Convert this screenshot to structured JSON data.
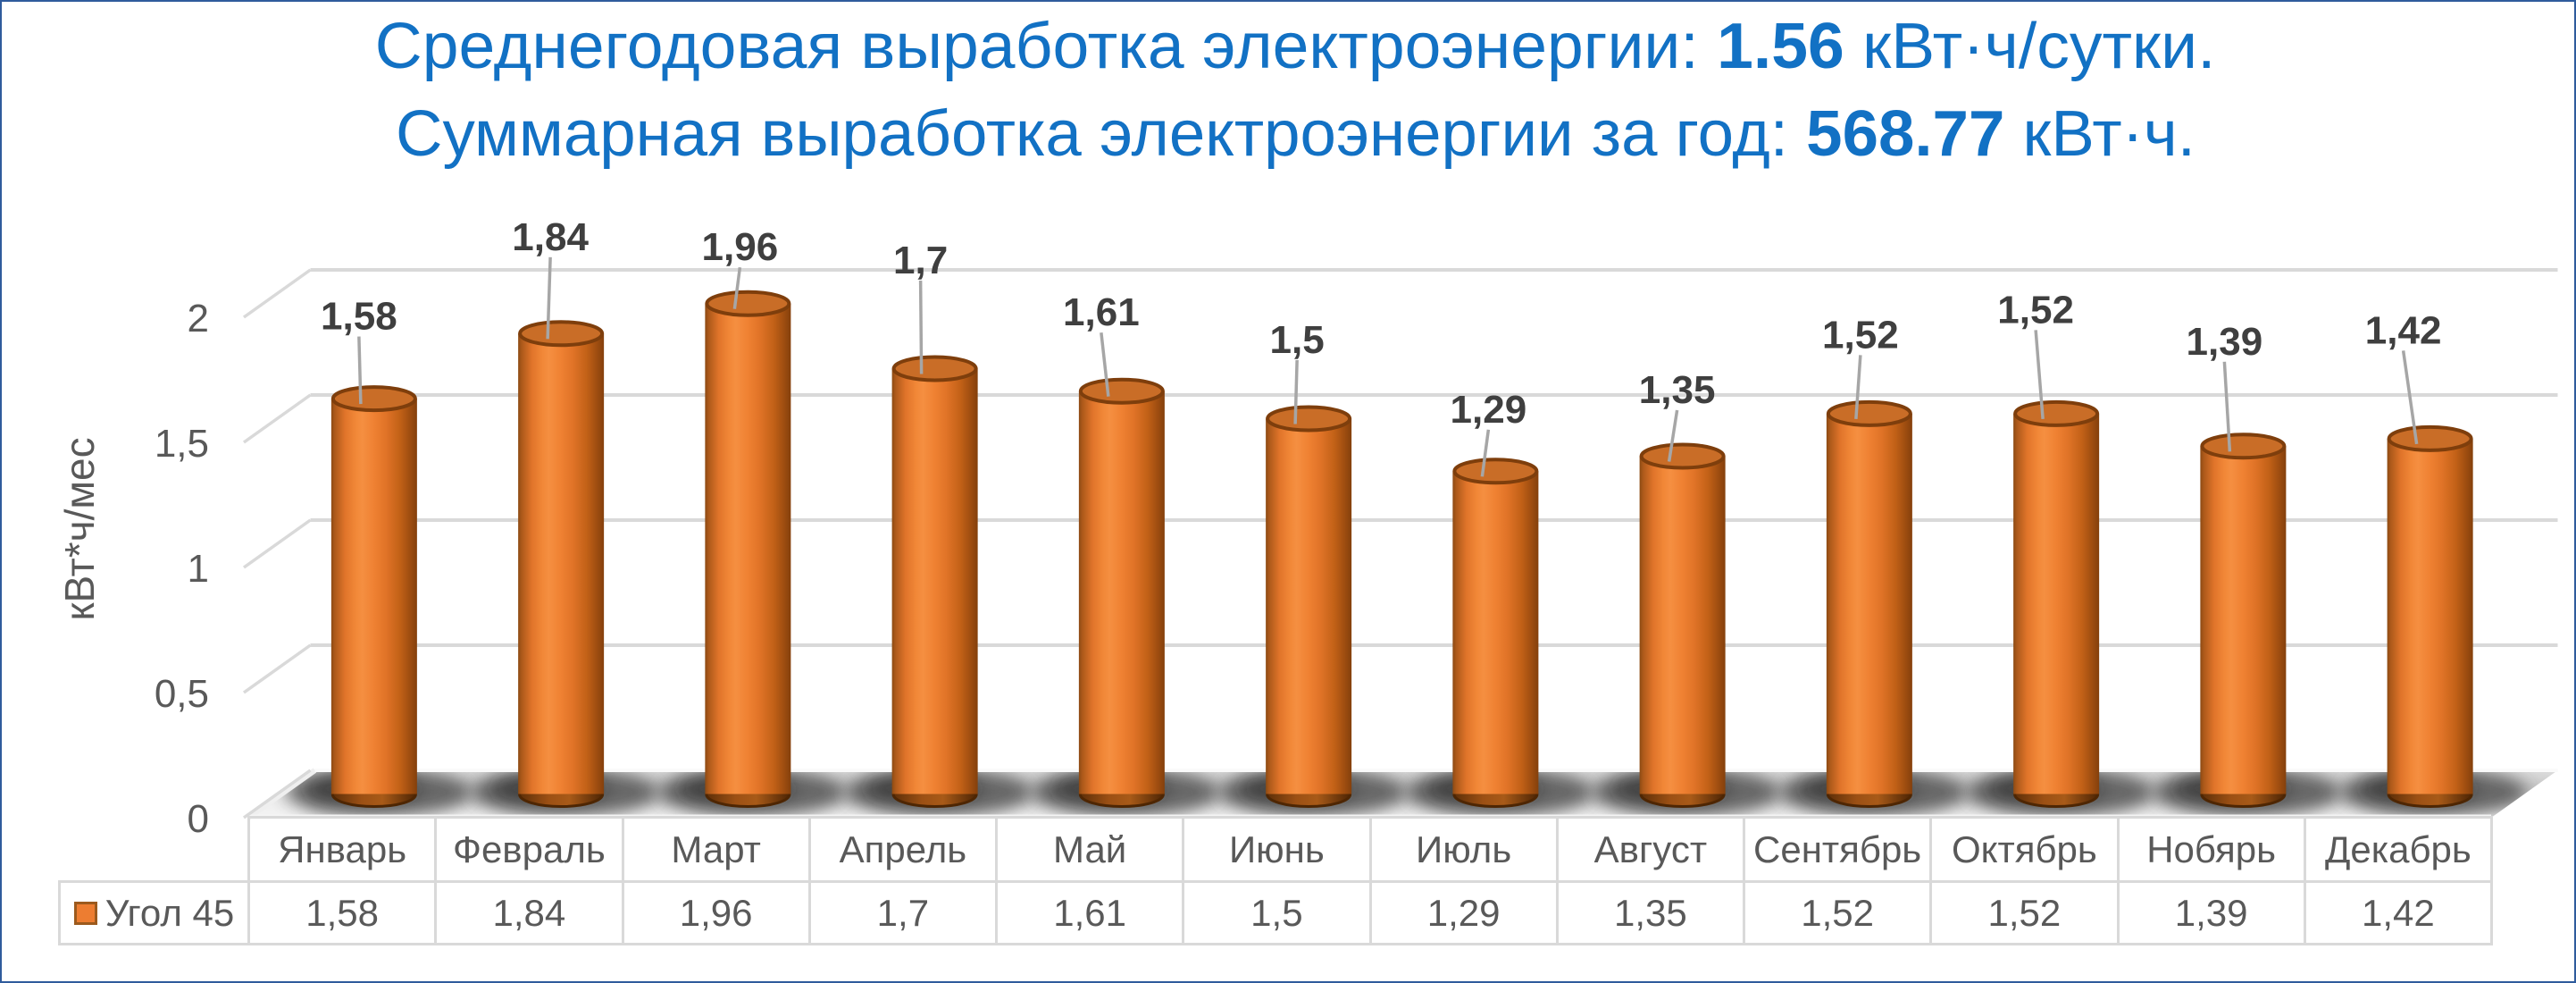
{
  "window": {
    "border_color": "#2F5B9C",
    "background": "#FFFFFF"
  },
  "chart_data": {
    "type": "bar",
    "variant": "3d-cylinder",
    "title_lines": [
      {
        "pre": "Среднегодовая выработка электроэнергии: ",
        "value": "1.56",
        "post": " кВт·ч/сутки."
      },
      {
        "pre": "Суммарная выработка электроэнергии за год: ",
        "value": "568.77",
        "post": " кВт·ч."
      }
    ],
    "categories": [
      "Январь",
      "Февраль",
      "Март",
      "Апрель",
      "Май",
      "Июнь",
      "Июль",
      "Август",
      "Сентябрь",
      "Октябрь",
      "Нобярь",
      "Декабрь"
    ],
    "series": [
      {
        "name": "Угол 45",
        "values": [
          1.58,
          1.84,
          1.96,
          1.7,
          1.61,
          1.5,
          1.29,
          1.35,
          1.52,
          1.52,
          1.39,
          1.42
        ],
        "labels": [
          "1,58",
          "1,84",
          "1,96",
          "1,7",
          "1,61",
          "1,5",
          "1,29",
          "1,35",
          "1,52",
          "1,52",
          "1,39",
          "1,42"
        ]
      }
    ],
    "ylabel": "кВт*ч/мес",
    "yticks": [
      {
        "v": 0,
        "label": "0"
      },
      {
        "v": 0.5,
        "label": "0,5"
      },
      {
        "v": 1,
        "label": "1"
      },
      {
        "v": 1.5,
        "label": "1,5"
      },
      {
        "v": 2,
        "label": "2"
      }
    ],
    "ylim": [
      0,
      2
    ],
    "grid": true,
    "legend_position": "data-table-left",
    "data_table": true,
    "layout": {
      "label_offsets_dx": [
        -17,
        -12,
        -9,
        -16,
        -23,
        -13,
        -8,
        -6,
        -10,
        -23,
        -21,
        -30
      ],
      "label_offsets_dy": [
        -80,
        -96,
        -51,
        -109,
        -76,
        -76,
        -57,
        -62,
        -76,
        -104,
        -105,
        -109
      ]
    },
    "colors": {
      "title_text": "#1271C4",
      "bar_fill": "#ED7D31",
      "bar_edge": "#7E3E0C",
      "gridline": "#D9D9D9",
      "tick_text": "#595959",
      "axis_title_text": "#595959",
      "data_label_text": "#3F3F3F",
      "leader_line": "#A6A6A6",
      "table_border": "#D9D9D9",
      "table_text": "#595959",
      "floor": "#E9E9E9"
    }
  }
}
